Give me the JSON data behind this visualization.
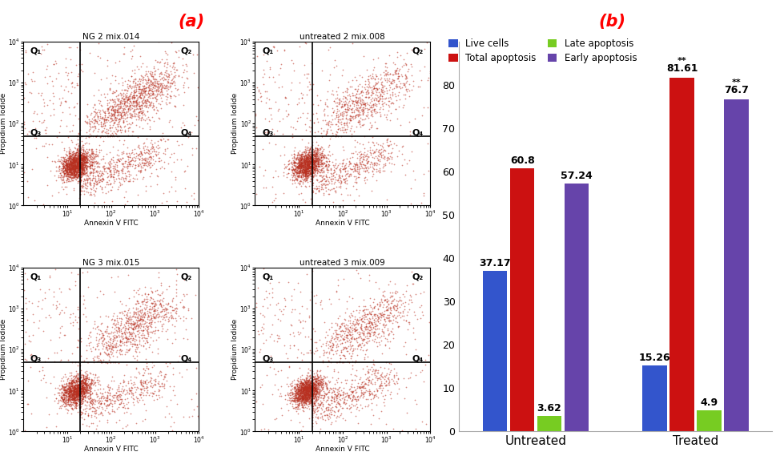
{
  "title_a": "(a)",
  "title_b": "(b)",
  "scatter_plots": [
    {
      "title": "NG 2 mix.014"
    },
    {
      "title": "untreated 2 mix.008"
    },
    {
      "title": "NG 3 mix.015"
    },
    {
      "title": "untreated 3 mix.009"
    }
  ],
  "bar_groups": [
    "Untreated",
    "Treated"
  ],
  "bar_categories": [
    "Live cells",
    "Total apoptosis",
    "Late apoptosis",
    "Early apoptosis"
  ],
  "bar_colors": [
    "#3355cc",
    "#cc1111",
    "#77cc22",
    "#6644aa"
  ],
  "bar_values": {
    "Untreated": [
      37.17,
      60.8,
      3.62,
      57.24
    ],
    "Treated": [
      15.26,
      81.61,
      4.9,
      76.7
    ]
  },
  "bar_significance": {
    "Untreated": [
      false,
      false,
      false,
      false
    ],
    "Treated": [
      false,
      true,
      false,
      true
    ]
  },
  "ylim": [
    0,
    90
  ],
  "yticks": [
    0,
    10,
    20,
    30,
    40,
    50,
    60,
    70,
    80
  ],
  "scatter_color": "#b83020",
  "xlabel_scatter": "Annexin V FITC",
  "ylabel_scatter": "Propidium Iodide",
  "hline_y": 50,
  "vline_x": 20,
  "background_color": "#ffffff"
}
